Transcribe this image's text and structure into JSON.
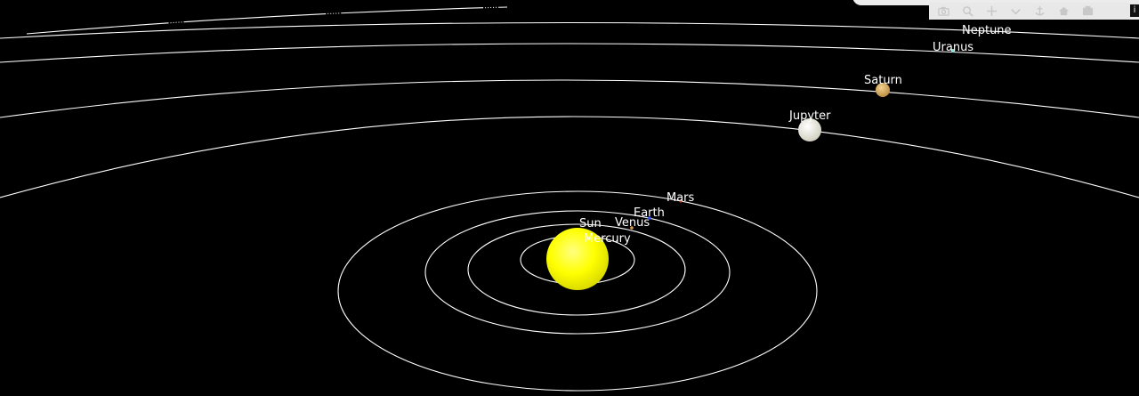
{
  "scene": {
    "background": "#000000",
    "orbit_color": "#ffffff",
    "label_color": "#ffffff"
  },
  "bodies": {
    "sun": {
      "label": "Sun",
      "color": "#ffff00"
    },
    "mercury": {
      "label": "Mercury",
      "color": "#9a9a9a"
    },
    "venus": {
      "label": "Venus",
      "color": "#e0a040"
    },
    "earth": {
      "label": "Earth",
      "color": "#3050ff"
    },
    "mars": {
      "label": "Mars",
      "color": "#d04020"
    },
    "jupiter": {
      "label": "Jupyter",
      "color": "#e8e6d8"
    },
    "saturn": {
      "label": "Saturn",
      "color": "#d8a85a"
    },
    "uranus": {
      "label": "Uranus",
      "color": "#7fe0d8"
    },
    "neptune": {
      "label": "Neptune",
      "color": "#4060ff"
    }
  },
  "modebar": {
    "buttons": [
      {
        "name": "camera-icon"
      },
      {
        "name": "zoom-icon"
      },
      {
        "name": "pan-icon"
      },
      {
        "name": "orbit-rotation-icon"
      },
      {
        "name": "turntable-rotation-icon"
      },
      {
        "name": "home-icon"
      },
      {
        "name": "reset-camera-icon"
      }
    ]
  }
}
